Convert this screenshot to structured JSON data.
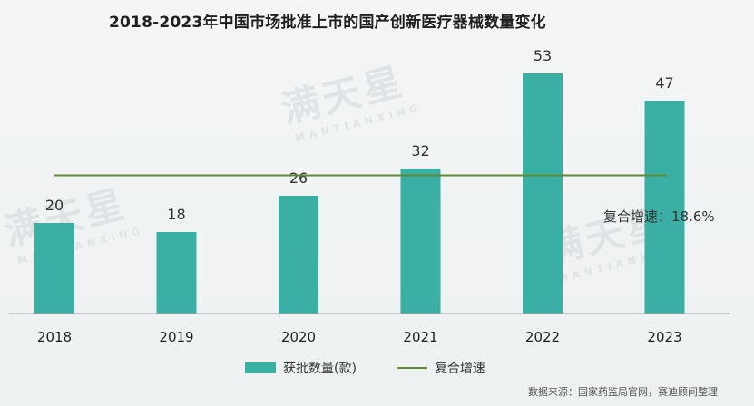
{
  "title": "2018-2023年中国市场批准上市的国产创新医疗器械数量变化",
  "watermark": {
    "text": "满天星",
    "subtext": "MANTIANXING"
  },
  "growth_annotation": "复合增速：18.6%",
  "legend": {
    "bar_label": "获批数量(款)",
    "line_label": "复合增速"
  },
  "source": "数据来源：国家药监局官网，赛迪顾问整理",
  "colors": {
    "bar": "#3aafa3",
    "line": "#5f8a2e",
    "axis": "#9aa3a6"
  },
  "chart_data": {
    "type": "bar",
    "title": "2018-2023年中国市场批准上市的国产创新医疗器械数量变化",
    "categories": [
      "2018",
      "2019",
      "2020",
      "2021",
      "2022",
      "2023"
    ],
    "series": [
      {
        "name": "获批数量(款)",
        "values": [
          20,
          18,
          26,
          32,
          53,
          47
        ]
      }
    ],
    "reference_line": {
      "name": "复合增速",
      "value": 30.5,
      "label": "复合增速：18.6%"
    },
    "ylim": [
      0,
      60
    ],
    "xlabel": "",
    "ylabel": "",
    "grid": false,
    "legend": "bottom-center"
  }
}
